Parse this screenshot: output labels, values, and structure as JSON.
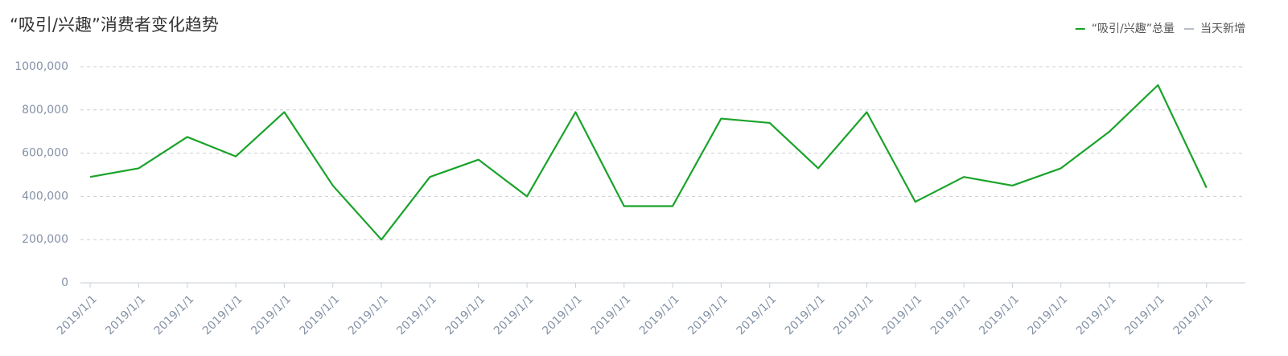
{
  "chart_data": {
    "type": "line",
    "title": "“吸引/兴趣”消费者变化趋势",
    "categories": [
      "2019/1/1",
      "2019/1/1",
      "2019/1/1",
      "2019/1/1",
      "2019/1/1",
      "2019/1/1",
      "2019/1/1",
      "2019/1/1",
      "2019/1/1",
      "2019/1/1",
      "2019/1/1",
      "2019/1/1",
      "2019/1/1",
      "2019/1/1",
      "2019/1/1",
      "2019/1/1",
      "2019/1/1",
      "2019/1/1",
      "2019/1/1",
      "2019/1/1",
      "2019/1/1",
      "2019/1/1",
      "2019/1/1",
      "2019/1/1"
    ],
    "series": [
      {
        "name": "“吸引/兴趣”总量",
        "color": "#1aa32a",
        "values": [
          490000,
          530000,
          675000,
          585000,
          790000,
          450000,
          200000,
          490000,
          570000,
          400000,
          790000,
          355000,
          355000,
          760000,
          740000,
          530000,
          790000,
          375000,
          490000,
          450000,
          530000,
          700000,
          915000,
          440000
        ]
      },
      {
        "name": "当天新增",
        "color": "#b8bec8",
        "values": [
          null,
          null,
          null,
          null,
          null,
          null,
          null,
          null,
          null,
          null,
          null,
          null,
          null,
          null,
          null,
          null,
          null,
          null,
          null,
          null,
          null,
          null,
          null,
          null
        ]
      }
    ],
    "ylim": [
      0,
      1000000
    ],
    "yticks": [
      0,
      {
        "value": 200000,
        "label": "200,000"
      },
      {
        "value": 400000,
        "label": "400,000"
      },
      {
        "value": 600000,
        "label": "600,000"
      },
      {
        "value": 800000,
        "label": "800,000"
      },
      {
        "value": 1000000,
        "label": "1000,000"
      }
    ],
    "grid": true,
    "legend": "top-right"
  }
}
